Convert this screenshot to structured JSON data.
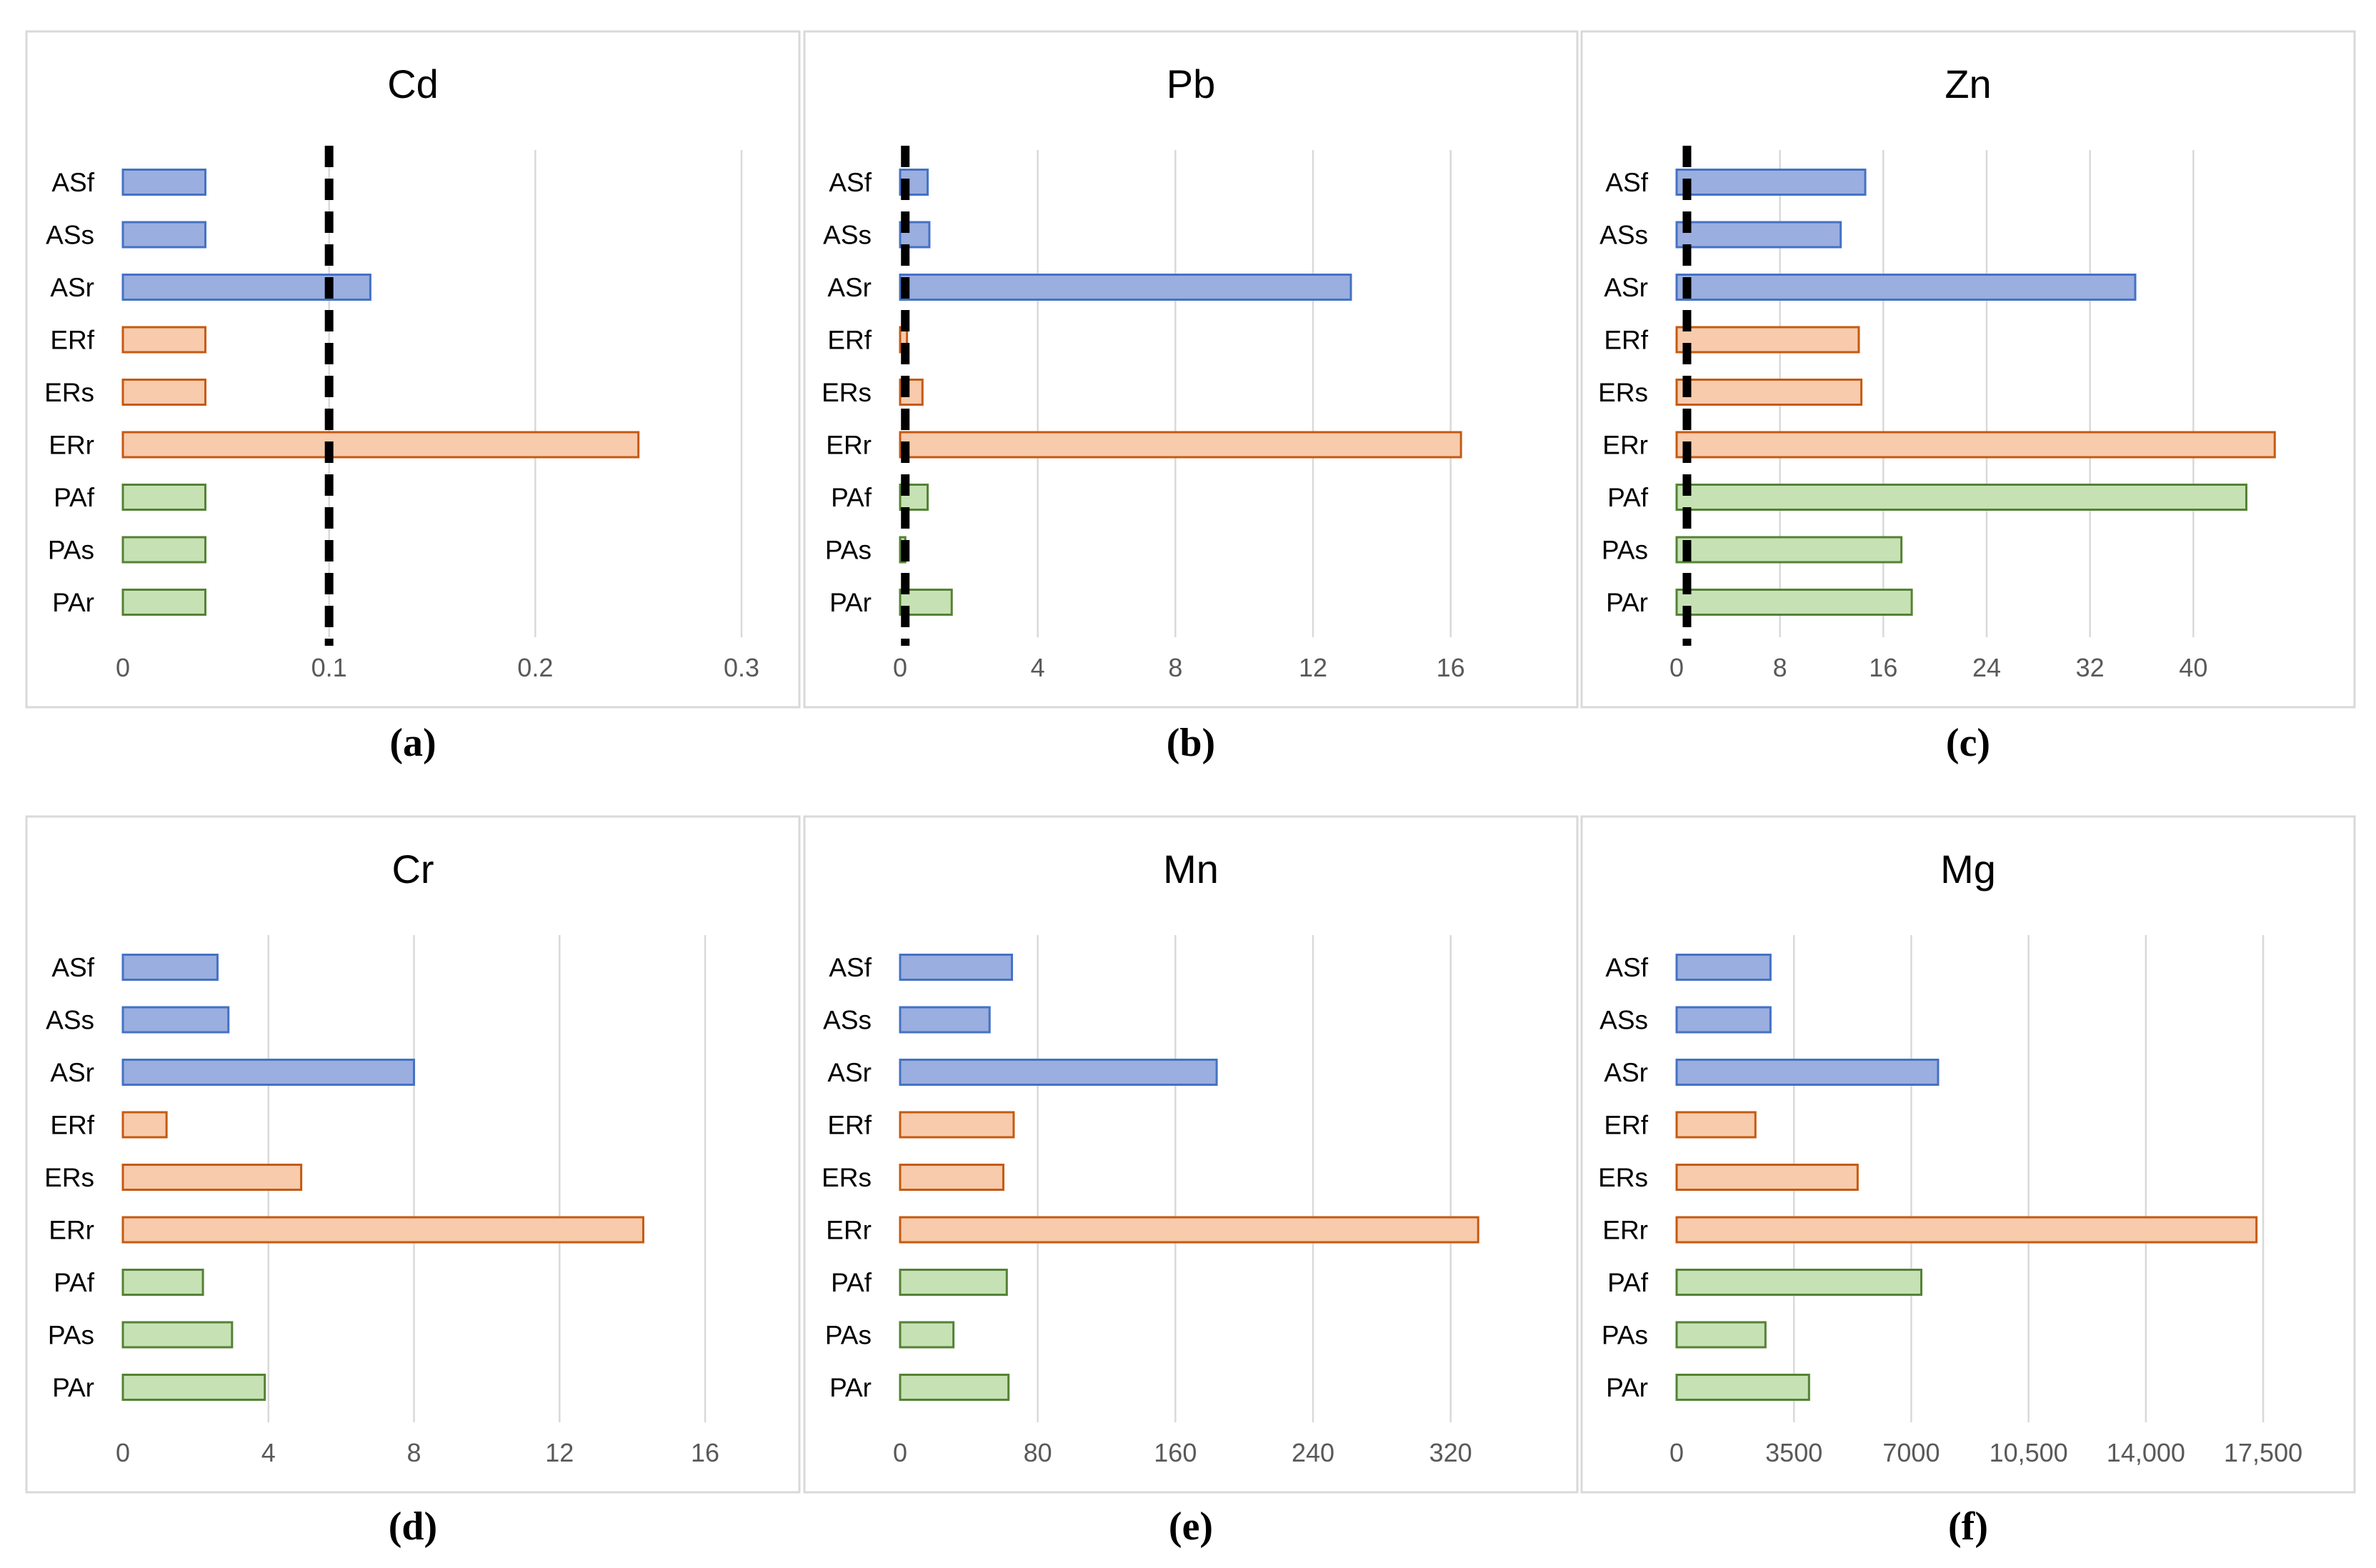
{
  "colors": {
    "AS_fill": "#9aaedf",
    "AS_stroke": "#4472c4",
    "ER_fill": "#f8cbad",
    "ER_stroke": "#c55a11",
    "PA_fill": "#c6e2b4",
    "PA_stroke": "#548235"
  },
  "chart_data": [
    {
      "type": "bar",
      "orientation": "horizontal",
      "title": "Cd",
      "caption": "(a)",
      "categories": [
        "ASf",
        "ASs",
        "ASr",
        "ERf",
        "ERs",
        "ERr",
        "PAf",
        "PAs",
        "PAr"
      ],
      "groups": [
        "AS",
        "AS",
        "AS",
        "ER",
        "ER",
        "ER",
        "PA",
        "PA",
        "PA"
      ],
      "values": [
        0.04,
        0.04,
        0.12,
        0.04,
        0.04,
        0.25,
        0.04,
        0.04,
        0.04
      ],
      "xlim": [
        0,
        0.3
      ],
      "ticks": [
        0,
        0.1,
        0.2,
        0.3
      ],
      "tick_labels": [
        "0",
        "0.1",
        "0.2",
        "0.3"
      ],
      "threshold": 0.1
    },
    {
      "type": "bar",
      "orientation": "horizontal",
      "title": "Pb",
      "caption": "(b)",
      "categories": [
        "ASf",
        "ASs",
        "ASr",
        "ERf",
        "ERs",
        "ERr",
        "PAf",
        "PAs",
        "PAr"
      ],
      "groups": [
        "AS",
        "AS",
        "AS",
        "ER",
        "ER",
        "ER",
        "PA",
        "PA",
        "PA"
      ],
      "values": [
        0.8,
        0.85,
        13.1,
        0.2,
        0.65,
        16.3,
        0.8,
        0.15,
        1.5
      ],
      "xlim": [
        0,
        18
      ],
      "ticks": [
        0,
        4,
        8,
        12,
        16
      ],
      "tick_labels": [
        "0",
        "4",
        "8",
        "12",
        "16"
      ],
      "threshold": 0.15
    },
    {
      "type": "bar",
      "orientation": "horizontal",
      "title": "Zn",
      "caption": "(c)",
      "categories": [
        "ASf",
        "ASs",
        "ASr",
        "ERf",
        "ERs",
        "ERr",
        "PAf",
        "PAs",
        "PAr"
      ],
      "groups": [
        "AS",
        "AS",
        "AS",
        "ER",
        "ER",
        "ER",
        "PA",
        "PA",
        "PA"
      ],
      "values": [
        14.6,
        12.7,
        35.5,
        14.1,
        14.3,
        46.3,
        44.1,
        17.4,
        18.2
      ],
      "xlim": [
        0,
        48
      ],
      "ticks": [
        0,
        8,
        16,
        24,
        32,
        40
      ],
      "tick_labels": [
        "0",
        "8",
        "16",
        "24",
        "32",
        "40"
      ],
      "threshold": 0.8
    },
    {
      "type": "bar",
      "orientation": "horizontal",
      "title": "Cr",
      "caption": "(d)",
      "categories": [
        "ASf",
        "ASs",
        "ASr",
        "ERf",
        "ERs",
        "ERr",
        "PAf",
        "PAs",
        "PAr"
      ],
      "groups": [
        "AS",
        "AS",
        "AS",
        "ER",
        "ER",
        "ER",
        "PA",
        "PA",
        "PA"
      ],
      "values": [
        2.6,
        2.9,
        8.0,
        1.2,
        4.9,
        14.3,
        2.2,
        3.0,
        3.9
      ],
      "xlim": [
        0,
        17
      ],
      "ticks": [
        0,
        4,
        8,
        12,
        16
      ],
      "tick_labels": [
        "0",
        "4",
        "8",
        "12",
        "16"
      ],
      "threshold": null
    },
    {
      "type": "bar",
      "orientation": "horizontal",
      "title": "Mn",
      "caption": "(e)",
      "categories": [
        "ASf",
        "ASs",
        "ASr",
        "ERf",
        "ERs",
        "ERr",
        "PAf",
        "PAs",
        "PAr"
      ],
      "groups": [
        "AS",
        "AS",
        "AS",
        "ER",
        "ER",
        "ER",
        "PA",
        "PA",
        "PA"
      ],
      "values": [
        65,
        52,
        184,
        66,
        60,
        336,
        62,
        31,
        63
      ],
      "xlim": [
        0,
        360
      ],
      "ticks": [
        0,
        80,
        160,
        240,
        320
      ],
      "tick_labels": [
        "0",
        "80",
        "160",
        "240",
        "320"
      ],
      "threshold": null
    },
    {
      "type": "bar",
      "orientation": "horizontal",
      "title": "Mg",
      "caption": "(f)",
      "categories": [
        "ASf",
        "ASs",
        "ASr",
        "ERf",
        "ERs",
        "ERr",
        "PAf",
        "PAs",
        "PAr"
      ],
      "groups": [
        "AS",
        "AS",
        "AS",
        "ER",
        "ER",
        "ER",
        "PA",
        "PA",
        "PA"
      ],
      "values": [
        2800,
        2800,
        7800,
        2350,
        5400,
        17300,
        7300,
        2650,
        3950
      ],
      "xlim": [
        0,
        18500
      ],
      "ticks": [
        0,
        3500,
        7000,
        10500,
        14000,
        17500
      ],
      "tick_labels": [
        "0",
        "3500",
        "7000",
        "10,500",
        "14,000",
        "17,500"
      ],
      "threshold": null
    }
  ]
}
